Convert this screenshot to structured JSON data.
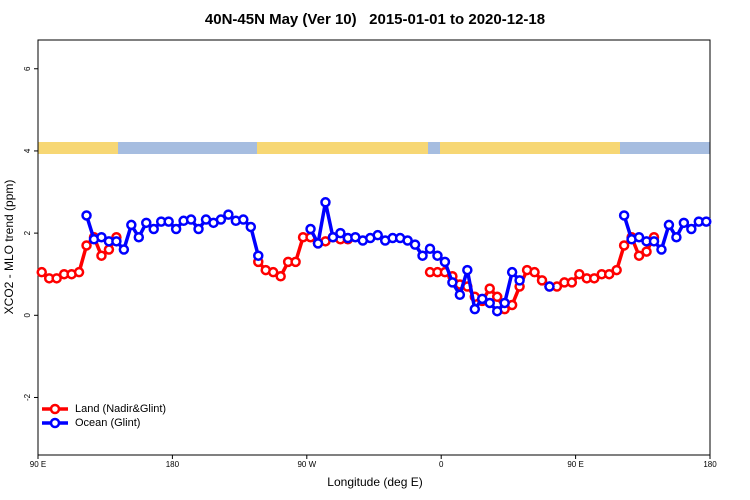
{
  "chart_data": {
    "type": "line",
    "title": "40N-45N May (Ver 10)   2015-01-01 to 2020-12-18",
    "x_label": "Longitude (deg E)",
    "y_label": "XCO2 - MLO trend (ppm)",
    "x": [
      92.5,
      97.5,
      102.5,
      107.5,
      112.5,
      117.5,
      122.5,
      127.5,
      132.5,
      137.5,
      142.5,
      147.5,
      152.5,
      157.5,
      162.5,
      167.5,
      172.5,
      177.5,
      182.5,
      187.5,
      192.5,
      197.5,
      202.5,
      207.5,
      212.5,
      217.5,
      222.5,
      227.5,
      232.5,
      237.5,
      242.5,
      247.5,
      252.5,
      257.5,
      262.5,
      267.5,
      272.5,
      277.5,
      282.5,
      287.5,
      292.5,
      297.5,
      302.5,
      307.5,
      312.5,
      317.5,
      322.5,
      327.5,
      332.5,
      337.5,
      342.5,
      347.5,
      352.5,
      357.5,
      362.5,
      367.5,
      372.5,
      377.5,
      382.5,
      387.5,
      392.5,
      397.5,
      402.5,
      407.5,
      412.5,
      417.5,
      422.5,
      427.5,
      432.5,
      437.5,
      442.5,
      447.5,
      452.5,
      457.5,
      462.5,
      467.5,
      472.5,
      477.5,
      482.5,
      487.5,
      492.5,
      497.5,
      502.5,
      507.5,
      512.5,
      517.5,
      522.5,
      527.5,
      532.5,
      537.5
    ],
    "series": [
      {
        "name": "Land (Nadir&Glint)",
        "color": "#ff0000",
        "values": [
          1.05,
          0.9,
          0.9,
          1.0,
          1.0,
          1.05,
          1.7,
          1.9,
          1.45,
          1.6,
          1.9,
          null,
          null,
          null,
          null,
          null,
          null,
          null,
          null,
          null,
          null,
          null,
          null,
          null,
          null,
          null,
          null,
          null,
          null,
          1.3,
          1.1,
          1.05,
          0.95,
          1.3,
          1.3,
          1.9,
          1.9,
          1.75,
          1.8,
          1.9,
          1.85,
          1.85,
          null,
          null,
          null,
          null,
          null,
          null,
          null,
          null,
          null,
          null,
          1.05,
          1.05,
          1.05,
          0.95,
          0.75,
          0.7,
          0.45,
          0.35,
          0.65,
          0.45,
          0.15,
          0.25,
          0.7,
          1.1,
          1.05,
          0.85,
          0.7,
          0.7,
          0.8,
          0.8,
          1.0,
          0.9,
          0.9,
          1.0,
          1.0,
          1.1,
          1.7,
          1.9,
          1.45,
          1.55,
          1.9,
          null,
          null,
          null,
          null,
          null,
          null,
          null
        ]
      },
      {
        "name": "Ocean (Glint)",
        "color": "#0000ff",
        "values": [
          null,
          null,
          null,
          null,
          null,
          null,
          2.43,
          1.85,
          1.9,
          1.8,
          1.8,
          1.6,
          2.2,
          1.9,
          2.25,
          2.1,
          2.28,
          2.28,
          2.1,
          2.3,
          2.33,
          2.1,
          2.33,
          2.25,
          2.33,
          2.45,
          2.3,
          2.33,
          2.15,
          1.45,
          null,
          null,
          null,
          null,
          null,
          null,
          2.1,
          1.75,
          2.75,
          1.9,
          2.0,
          1.88,
          1.9,
          1.82,
          1.88,
          1.95,
          1.82,
          1.88,
          1.88,
          1.82,
          1.72,
          1.45,
          1.62,
          1.45,
          1.3,
          0.8,
          0.5,
          1.1,
          0.15,
          0.4,
          0.3,
          0.1,
          0.3,
          1.05,
          0.85,
          null,
          null,
          null,
          0.7,
          null,
          null,
          null,
          null,
          null,
          null,
          null,
          null,
          null,
          2.43,
          1.85,
          1.9,
          1.8,
          1.8,
          1.6,
          2.2,
          1.9,
          2.25,
          2.1,
          2.28,
          2.28
        ]
      }
    ],
    "xlim": [
      90,
      540
    ],
    "xticks": [
      {
        "value": 90,
        "label": "90 E"
      },
      180,
      {
        "value": 270,
        "label": "90 W"
      },
      {
        "value": 360,
        "label": "0"
      },
      {
        "value": 450,
        "label": "90 E"
      },
      {
        "value": 540,
        "label": "180"
      }
    ],
    "ylim": [
      -3.4,
      6.7
    ],
    "yticks": [
      -2,
      0,
      2,
      4,
      6
    ],
    "legend": "bottom-left"
  }
}
